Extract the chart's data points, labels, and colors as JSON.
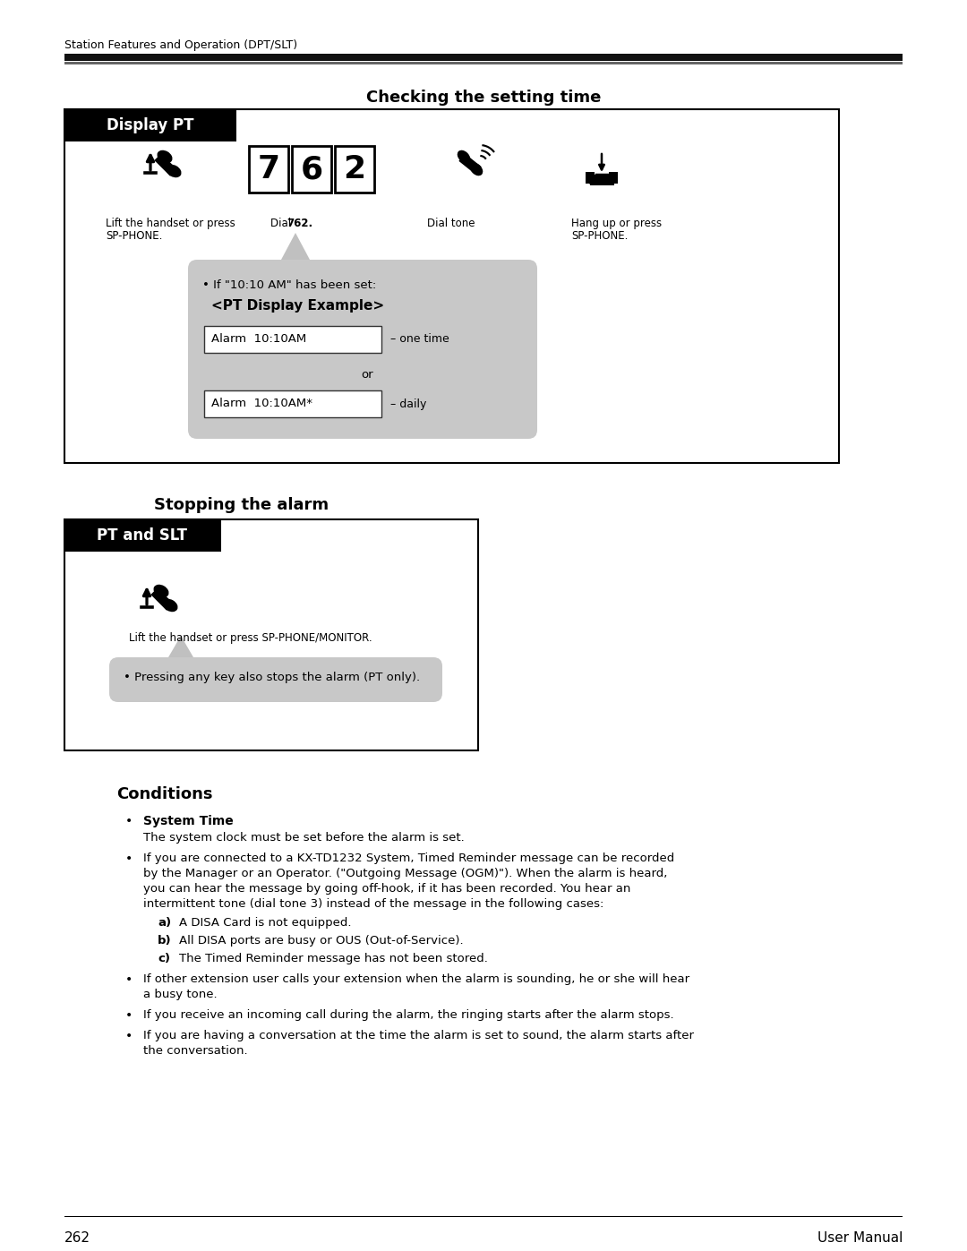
{
  "page_header": "Station Features and Operation (DPT/SLT)",
  "section1_title": "Checking the setting time",
  "display_pt_label": "Display PT",
  "dial_digits": [
    "7",
    "6",
    "2"
  ],
  "dial_tone_label": "Dial tone",
  "lift_label1": "Lift the handset or press",
  "lift_label2": "SP-PHONE.",
  "dial_label_plain": "Dial ",
  "dial_label_bold": "762.",
  "hangup_label1": "Hang up or press",
  "hangup_label2": "SP-PHONE.",
  "bubble1_line1": "• If \"10:10 AM\" has been set:",
  "bubble1_line2": "<PT Display Example>",
  "alarm1_text": "Alarm  10:10AM",
  "alarm1_suffix": "– one time",
  "or_text": "or",
  "alarm2_text": "Alarm  10:10AM*",
  "alarm2_suffix": "– daily",
  "section2_title": "Stopping the alarm",
  "pt_slt_label": "PT and SLT",
  "lift2_label": "Lift the handset or press SP-PHONE/MONITOR.",
  "bubble2_text": "• Pressing any key also stops the alarm (PT only).",
  "conditions_title": "Conditions",
  "sys_time_bold": "System Time",
  "sys_time_text": "The system clock must be set before the alarm is set.",
  "bullet2_l1": "If you are connected to a KX-TD1232 System, Timed Reminder message can be recorded",
  "bullet2_l2": "by the Manager or an Operator. (\"Outgoing Message (OGM)\"). When the alarm is heard,",
  "bullet2_l3": "you can hear the message by going off-hook, if it has been recorded. You hear an",
  "bullet2_l4": "intermittent tone (dial tone 3) instead of the message in the following cases:",
  "bullet_a": "A DISA Card is not equipped.",
  "bullet_b": "All DISA ports are busy or OUS (Out-of-Service).",
  "bullet_c": "The Timed Reminder message has not been stored.",
  "bullet3_l1": "If other extension user calls your extension when the alarm is sounding, he or she will hear",
  "bullet3_l2": "a busy tone.",
  "bullet4": "If you receive an incoming call during the alarm, the ringing starts after the alarm stops.",
  "bullet5_l1": "If you are having a conversation at the time the alarm is set to sound, the alarm starts after",
  "bullet5_l2": "the conversation.",
  "page_number": "262",
  "page_footer": "User Manual"
}
